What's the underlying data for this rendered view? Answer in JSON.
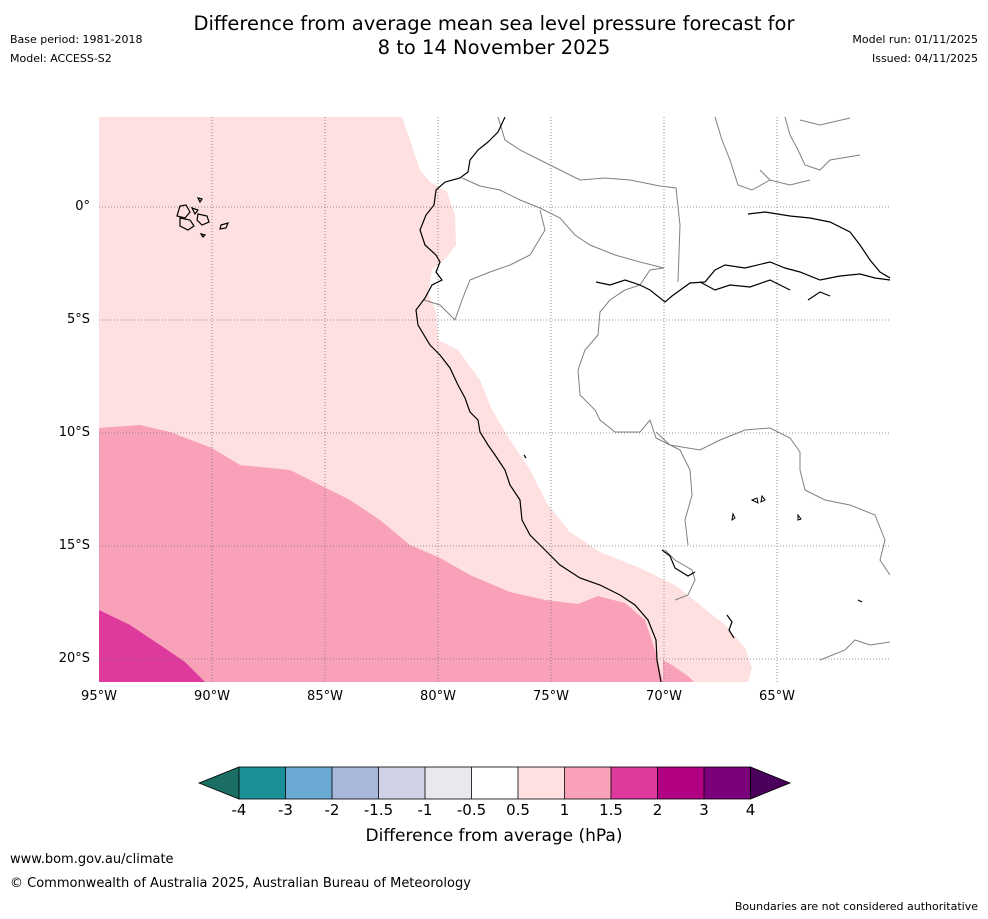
{
  "header": {
    "title_line1": "Difference from average mean sea level pressure forecast for",
    "title_line2": "8 to 14 November 2025",
    "base_period": "Base period: 1981-2018",
    "model": "Model: ACCESS-S2",
    "model_run": "Model run: 01/11/2025",
    "issued": "Issued: 04/11/2025"
  },
  "map": {
    "lat_labels": [
      "0°",
      "5°S",
      "10°S",
      "15°S",
      "20°S"
    ],
    "lon_labels": [
      "95°W",
      "90°W",
      "85°W",
      "80°W",
      "75°W",
      "70°W",
      "65°W"
    ],
    "regions": [
      {
        "name": "anomaly-0.5-to-1-region",
        "range": "0.5 to 1"
      },
      {
        "name": "anomaly-1-to-1.5-region",
        "range": "1 to 1.5"
      },
      {
        "name": "anomaly-1.5-to-2-region",
        "range": "1.5 to 2"
      }
    ]
  },
  "colorbar": {
    "ticks": [
      "-4",
      "-3",
      "-2",
      "-1.5",
      "-1",
      "-0.5",
      "0.5",
      "1",
      "1.5",
      "2",
      "3",
      "4"
    ],
    "colors": [
      "#1b6e63",
      "#1a9197",
      "#6aa9d1",
      "#a7b8da",
      "#cfd1e6",
      "#e9e8ec",
      "#ffffff",
      "#fde0df",
      "#f8a1b8",
      "#de3a9d",
      "#b20082",
      "#7b007c",
      "#4b005c"
    ],
    "label": "Difference from average (hPa)"
  },
  "footer": {
    "website": "www.bom.gov.au/climate",
    "copyright": "© Commonwealth of Australia 2025, Australian Bureau of Meteorology",
    "disclaimer": "Boundaries are not considered authoritative"
  }
}
